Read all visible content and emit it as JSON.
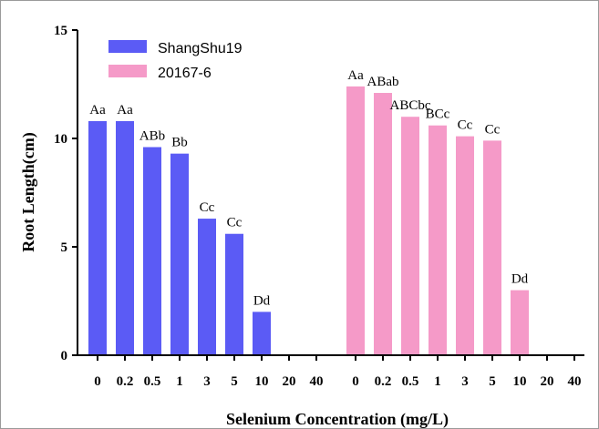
{
  "chart_data": {
    "type": "bar",
    "xlabel": "Selenium Concentration (mg/L)",
    "ylabel": "Root Length(cm)",
    "ylim": [
      0,
      15
    ],
    "yticks": [
      "0",
      "5",
      "10",
      "15"
    ],
    "grid": false,
    "legend_position": "top-left",
    "categories": [
      "0",
      "0.2",
      "0.5",
      "1",
      "3",
      "5",
      "10",
      "20",
      "40"
    ],
    "series": [
      {
        "name": "ShangShu19",
        "color": "#5b5bf5",
        "values": [
          10.8,
          10.8,
          9.6,
          9.3,
          6.3,
          5.6,
          2.0,
          null,
          null
        ],
        "labels": [
          "Aa",
          "Aa",
          "ABb",
          "Bb",
          "Cc",
          "Cc",
          "Dd",
          "",
          ""
        ]
      },
      {
        "name": "20167-6",
        "color": "#f59ac8",
        "values": [
          12.4,
          12.1,
          11.0,
          10.6,
          10.1,
          9.9,
          3.0,
          null,
          null
        ],
        "labels": [
          "Aa",
          "ABab",
          "ABCbc",
          "BCc",
          "Cc",
          "Cc",
          "Dd",
          "",
          ""
        ]
      }
    ]
  }
}
